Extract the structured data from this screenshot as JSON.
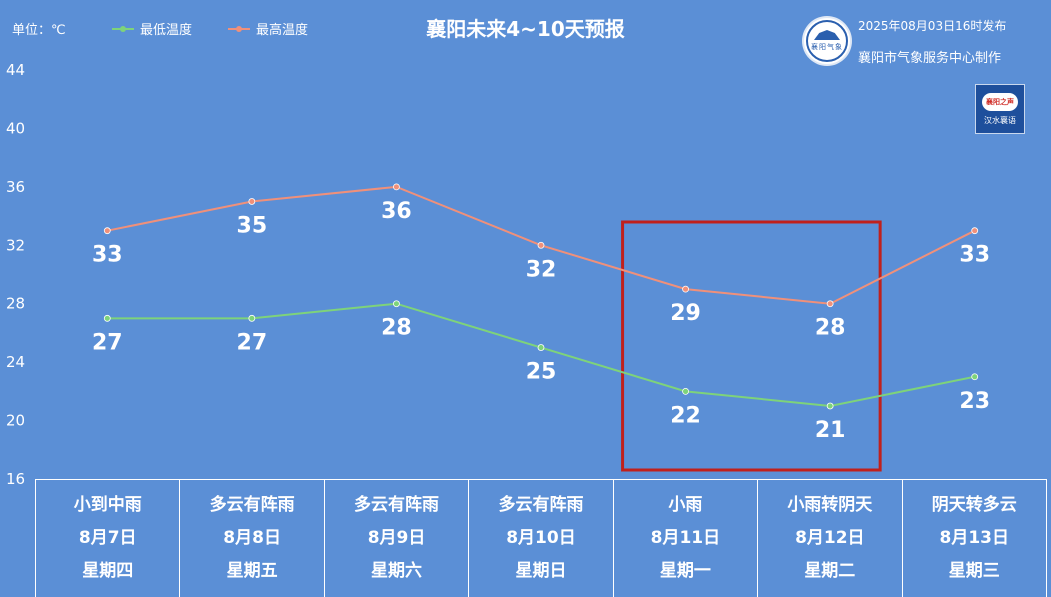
{
  "header": {
    "unit_label": "单位：℃",
    "legend": [
      {
        "name": "最低温度",
        "color": "#7ed37a"
      },
      {
        "name": "最高温度",
        "color": "#f0907a"
      }
    ],
    "title": "襄阳未来4~10天预报",
    "publish_time": "2025年08月03日16时发布",
    "maker": "襄阳市气象服务中心制作",
    "logo_text": "襄阳气象",
    "badge_top": "襄阳之声",
    "badge_bottom": "汉水襄语"
  },
  "highlight_color": "#c0201c",
  "days": [
    {
      "weather": "小到中雨",
      "date": "8月7日",
      "weekday": "星期四"
    },
    {
      "weather": "多云有阵雨",
      "date": "8月8日",
      "weekday": "星期五"
    },
    {
      "weather": "多云有阵雨",
      "date": "8月9日",
      "weekday": "星期六"
    },
    {
      "weather": "多云有阵雨",
      "date": "8月10日",
      "weekday": "星期日"
    },
    {
      "weather": "小雨",
      "date": "8月11日",
      "weekday": "星期一"
    },
    {
      "weather": "小雨转阴天",
      "date": "8月12日",
      "weekday": "星期二"
    },
    {
      "weather": "阴天转多云",
      "date": "8月13日",
      "weekday": "星期三"
    }
  ],
  "chart_data": {
    "type": "line",
    "title": "襄阳未来4~10天预报",
    "categories": [
      "8月7日",
      "8月8日",
      "8月9日",
      "8月10日",
      "8月11日",
      "8月12日",
      "8月13日"
    ],
    "series": [
      {
        "name": "最高温度",
        "values": [
          33,
          35,
          36,
          32,
          29,
          28,
          33
        ],
        "color": "#f0907a"
      },
      {
        "name": "最低温度",
        "values": [
          27,
          27,
          28,
          25,
          22,
          21,
          23
        ],
        "color": "#7ed37a"
      }
    ],
    "ylim": [
      16,
      44
    ],
    "yticks": [
      16,
      20,
      24,
      28,
      32,
      36,
      40,
      44
    ],
    "ylabel": "单位：℃",
    "grid": false,
    "legend": "top-left",
    "highlight_categories": [
      "8月11日",
      "8月12日"
    ]
  }
}
